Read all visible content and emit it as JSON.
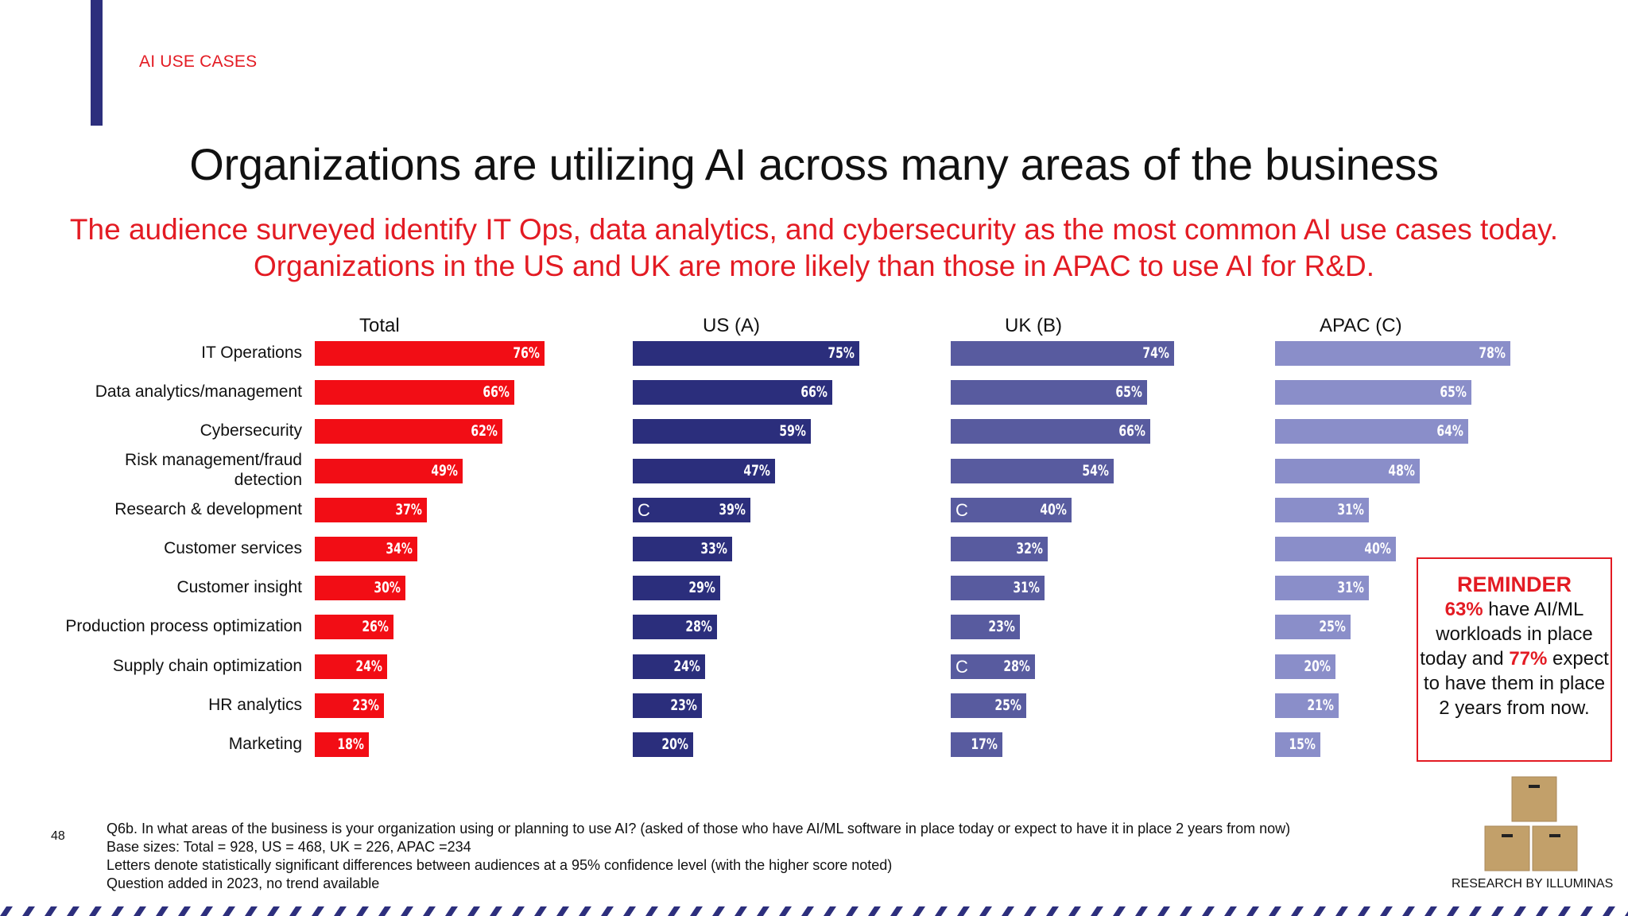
{
  "header": {
    "section_label": "AI USE CASES",
    "headline": "Organizations are utilizing AI across many areas of the business",
    "subhead": "The audience surveyed identify IT Ops, data analytics, and cybersecurity as the most common AI use cases today. Organizations in the US and UK are more likely than those in APAC to use AI for R&D."
  },
  "chart_data": {
    "type": "bar",
    "orientation": "horizontal",
    "categories": [
      "IT Operations",
      "Data analytics/management",
      "Cybersecurity",
      "Risk management/fraud detection",
      "Research & development",
      "Customer services",
      "Customer insight",
      "Production process optimization",
      "Supply chain optimization",
      "HR analytics",
      "Marketing"
    ],
    "series": [
      {
        "name": "Total",
        "color": "#f20d15",
        "values": [
          76,
          66,
          62,
          49,
          37,
          34,
          30,
          26,
          24,
          23,
          18
        ],
        "labels": [
          "76%",
          "66%",
          "62%",
          "49%",
          "37%",
          "34%",
          "30%",
          "26%",
          "24%",
          "23%",
          "18%"
        ],
        "sig": [
          "",
          "",
          "",
          "",
          "",
          "",
          "",
          "",
          "",
          "",
          ""
        ]
      },
      {
        "name": "US (A)",
        "color": "#2b2e7c",
        "values": [
          75,
          66,
          59,
          47,
          39,
          33,
          29,
          28,
          24,
          23,
          20
        ],
        "labels": [
          "75%",
          "66%",
          "59%",
          "47%",
          "39%",
          "33%",
          "29%",
          "28%",
          "24%",
          "23%",
          "20%"
        ],
        "sig": [
          "",
          "",
          "",
          "",
          "C",
          "",
          "",
          "",
          "",
          "",
          ""
        ]
      },
      {
        "name": "UK (B)",
        "color": "#585b9f",
        "values": [
          74,
          65,
          66,
          54,
          40,
          32,
          31,
          23,
          28,
          25,
          17
        ],
        "labels": [
          "74%",
          "65%",
          "66%",
          "54%",
          "40%",
          "32%",
          "31%",
          "23%",
          "28%",
          "25%",
          "17%"
        ],
        "sig": [
          "",
          "",
          "",
          "",
          "C",
          "",
          "",
          "",
          "C",
          "",
          ""
        ]
      },
      {
        "name": "APAC (C)",
        "color": "#8a8ec9",
        "values": [
          78,
          65,
          64,
          48,
          31,
          40,
          31,
          25,
          20,
          21,
          15
        ],
        "labels": [
          "78%",
          "65%",
          "64%",
          "48%",
          "31%",
          "40%",
          "31%",
          "25%",
          "20%",
          "21%",
          "15%"
        ],
        "sig": [
          "",
          "",
          "",
          "",
          "",
          "",
          "",
          "",
          "",
          "",
          ""
        ]
      }
    ],
    "xlim": [
      0,
      100
    ],
    "grid": false,
    "legend": "none"
  },
  "reminder": {
    "title": "REMINDER",
    "stat1": "63%",
    "text1": " have AI/ML workloads in place today and ",
    "stat2": "77%",
    "text2": " expect to have them in place 2 years from now."
  },
  "footer": {
    "page_number": "48",
    "notes": [
      "Q6b. In what areas of the business is your organization using or planning to use AI? (asked of those who have AI/ML software in place today or expect to have it in place 2 years from now)",
      "Base sizes: Total = 928, US = 468, UK = 226, APAC =234",
      "Letters denote statistically significant differences between audiences at a 95% confidence level (with the higher score noted)",
      "Question added in 2023, no trend available"
    ],
    "credit": "RESEARCH BY ILLUMINAS"
  },
  "icons": {
    "logo": "stacked-boxes-icon"
  }
}
